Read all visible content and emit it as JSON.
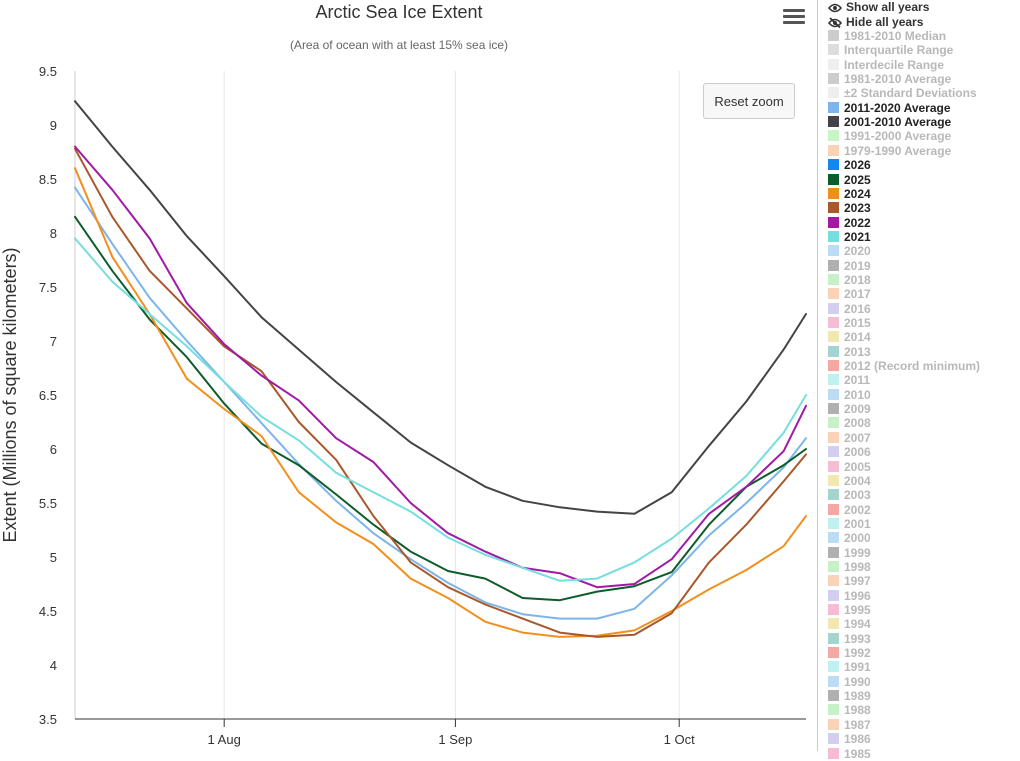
{
  "chart_data": {
    "type": "line",
    "title": "Arctic Sea Ice Extent",
    "subtitle": "(Area of ocean with at least 15% sea ice)",
    "ylabel": "Extent (Millions of square kilometers)",
    "xlabel": "",
    "ylim": [
      3.5,
      9.5
    ],
    "yticks": [
      "3.5",
      "4",
      "4.5",
      "5",
      "5.5",
      "6",
      "6.5",
      "7",
      "7.5",
      "8",
      "8.5",
      "9",
      "9.5"
    ],
    "x_ticks": [
      {
        "label": "1 Aug",
        "day": 213
      },
      {
        "label": "1 Sep",
        "day": 244
      },
      {
        "label": "1 Oct",
        "day": 274
      }
    ],
    "xlim_days": [
      193,
      291
    ],
    "grid": "vertical",
    "series": [
      {
        "name": "2001-2010 Average",
        "color": "#434348",
        "x": [
          193,
          198,
          203,
          208,
          213,
          218,
          223,
          228,
          233,
          238,
          243,
          248,
          253,
          258,
          263,
          268,
          273,
          278,
          283,
          288,
          291
        ],
        "values": [
          9.22,
          8.8,
          8.4,
          7.97,
          7.6,
          7.22,
          6.92,
          6.62,
          6.34,
          6.06,
          5.85,
          5.65,
          5.52,
          5.46,
          5.42,
          5.4,
          5.6,
          6.03,
          6.44,
          6.92,
          7.25
        ]
      },
      {
        "name": "2011-2020 Average",
        "color": "#7cb5ec",
        "x": [
          193,
          198,
          203,
          208,
          213,
          218,
          223,
          228,
          233,
          238,
          243,
          248,
          253,
          258,
          263,
          268,
          273,
          278,
          283,
          288,
          291
        ],
        "values": [
          8.42,
          7.9,
          7.4,
          7.0,
          6.62,
          6.24,
          5.86,
          5.52,
          5.22,
          4.98,
          4.76,
          4.58,
          4.47,
          4.43,
          4.43,
          4.52,
          4.83,
          5.2,
          5.5,
          5.83,
          6.1
        ]
      },
      {
        "name": "2025",
        "color": "#0d5c2b",
        "x": [
          193,
          198,
          203,
          208,
          213,
          218,
          223,
          228,
          233,
          238,
          243,
          248,
          253,
          258,
          263,
          268,
          273,
          278,
          283,
          288,
          291
        ],
        "values": [
          8.15,
          7.65,
          7.2,
          6.85,
          6.42,
          6.05,
          5.85,
          5.58,
          5.3,
          5.05,
          4.87,
          4.8,
          4.62,
          4.6,
          4.68,
          4.73,
          4.86,
          5.3,
          5.65,
          5.85,
          6.0
        ]
      },
      {
        "name": "2024",
        "color": "#f28f1c",
        "x": [
          193,
          198,
          203,
          208,
          213,
          218,
          223,
          228,
          233,
          238,
          243,
          248,
          253,
          258,
          263,
          268,
          273,
          278,
          283,
          288,
          291
        ],
        "values": [
          8.6,
          7.78,
          7.25,
          6.65,
          6.37,
          6.12,
          5.6,
          5.32,
          5.12,
          4.8,
          4.62,
          4.4,
          4.3,
          4.26,
          4.27,
          4.32,
          4.5,
          4.7,
          4.88,
          5.1,
          5.38
        ]
      },
      {
        "name": "2023",
        "color": "#a8582b",
        "x": [
          193,
          198,
          203,
          208,
          213,
          218,
          223,
          228,
          233,
          238,
          243,
          248,
          253,
          258,
          263,
          268,
          273,
          278,
          283,
          288,
          291
        ],
        "values": [
          8.78,
          8.15,
          7.65,
          7.3,
          6.95,
          6.72,
          6.25,
          5.9,
          5.38,
          4.95,
          4.72,
          4.56,
          4.43,
          4.3,
          4.26,
          4.28,
          4.48,
          4.95,
          5.3,
          5.7,
          5.95
        ]
      },
      {
        "name": "2022",
        "color": "#a01aa6",
        "x": [
          193,
          198,
          203,
          208,
          213,
          218,
          223,
          228,
          233,
          238,
          243,
          248,
          253,
          258,
          263,
          268,
          273,
          278,
          283,
          288,
          291
        ],
        "values": [
          8.8,
          8.4,
          7.95,
          7.35,
          6.97,
          6.68,
          6.45,
          6.1,
          5.88,
          5.5,
          5.22,
          5.05,
          4.9,
          4.85,
          4.72,
          4.75,
          4.98,
          5.4,
          5.65,
          5.98,
          6.4
        ]
      },
      {
        "name": "2021",
        "color": "#76dede",
        "x": [
          193,
          198,
          203,
          208,
          213,
          218,
          223,
          228,
          233,
          238,
          243,
          248,
          253,
          258,
          263,
          268,
          273,
          278,
          283,
          288,
          291
        ],
        "values": [
          7.95,
          7.55,
          7.25,
          6.95,
          6.62,
          6.3,
          6.08,
          5.78,
          5.6,
          5.42,
          5.18,
          5.02,
          4.9,
          4.78,
          4.8,
          4.95,
          5.17,
          5.45,
          5.75,
          6.15,
          6.5
        ]
      }
    ]
  },
  "toolbar": {
    "reset_zoom": "Reset zoom"
  },
  "legend": {
    "show_all": "Show all years",
    "hide_all": "Hide all years",
    "items": [
      {
        "label": "1981-2010 Median",
        "color": "#cccccc",
        "active": false
      },
      {
        "label": "Interquartile Range",
        "color": "#dddddd",
        "active": false
      },
      {
        "label": "Interdecile Range",
        "color": "#eeeeee",
        "active": false
      },
      {
        "label": "1981-2010 Average",
        "color": "#cccccc",
        "active": false
      },
      {
        "label": "±2 Standard Deviations",
        "color": "#eeeeee",
        "active": false
      },
      {
        "label": "2011-2020 Average",
        "color": "#7cb5ec",
        "active": true
      },
      {
        "label": "2001-2010 Average",
        "color": "#434348",
        "active": true
      },
      {
        "label": "1991-2000 Average",
        "color": "#c8f5c8",
        "active": false
      },
      {
        "label": "1979-1990 Average",
        "color": "#fad2b8",
        "active": false
      },
      {
        "label": "2026",
        "color": "#1188ee",
        "active": true
      },
      {
        "label": "2025",
        "color": "#0d5c2b",
        "active": true
      },
      {
        "label": "2024",
        "color": "#f28f1c",
        "active": true
      },
      {
        "label": "2023",
        "color": "#a8582b",
        "active": true
      },
      {
        "label": "2022",
        "color": "#a01aa6",
        "active": true
      },
      {
        "label": "2021",
        "color": "#76dede",
        "active": true
      },
      {
        "label": "2020",
        "color": "#bcdcf4",
        "active": false
      },
      {
        "label": "2019",
        "color": "#b0b0b0",
        "active": false
      },
      {
        "label": "2018",
        "color": "#c8f0c8",
        "active": false
      },
      {
        "label": "2017",
        "color": "#fad2b8",
        "active": false
      },
      {
        "label": "2016",
        "color": "#d2cef0",
        "active": false
      },
      {
        "label": "2015",
        "color": "#f6bcd6",
        "active": false
      },
      {
        "label": "2014",
        "color": "#f0e8b0",
        "active": false
      },
      {
        "label": "2013",
        "color": "#a4d4d0",
        "active": false
      },
      {
        "label": "2012 (Record minimum)",
        "color": "#f4a8a4",
        "active": false
      },
      {
        "label": "2011",
        "color": "#c0f0f0",
        "active": false
      },
      {
        "label": "2010",
        "color": "#bcdcf4",
        "active": false
      },
      {
        "label": "2009",
        "color": "#b0b0b0",
        "active": false
      },
      {
        "label": "2008",
        "color": "#c8f0c8",
        "active": false
      },
      {
        "label": "2007",
        "color": "#fad2b8",
        "active": false
      },
      {
        "label": "2006",
        "color": "#d2cef0",
        "active": false
      },
      {
        "label": "2005",
        "color": "#f6bcd6",
        "active": false
      },
      {
        "label": "2004",
        "color": "#f0e8b0",
        "active": false
      },
      {
        "label": "2003",
        "color": "#a4d4d0",
        "active": false
      },
      {
        "label": "2002",
        "color": "#f4a8a4",
        "active": false
      },
      {
        "label": "2001",
        "color": "#c0f0f0",
        "active": false
      },
      {
        "label": "2000",
        "color": "#bcdcf4",
        "active": false
      },
      {
        "label": "1999",
        "color": "#b0b0b0",
        "active": false
      },
      {
        "label": "1998",
        "color": "#c8f0c8",
        "active": false
      },
      {
        "label": "1997",
        "color": "#fad2b8",
        "active": false
      },
      {
        "label": "1996",
        "color": "#d2cef0",
        "active": false
      },
      {
        "label": "1995",
        "color": "#f6bcd6",
        "active": false
      },
      {
        "label": "1994",
        "color": "#f0e8b0",
        "active": false
      },
      {
        "label": "1993",
        "color": "#a4d4d0",
        "active": false
      },
      {
        "label": "1992",
        "color": "#f4a8a4",
        "active": false
      },
      {
        "label": "1991",
        "color": "#c0f0f0",
        "active": false
      },
      {
        "label": "1990",
        "color": "#bcdcf4",
        "active": false
      },
      {
        "label": "1989",
        "color": "#b0b0b0",
        "active": false
      },
      {
        "label": "1988",
        "color": "#c8f0c8",
        "active": false
      },
      {
        "label": "1987",
        "color": "#fad2b8",
        "active": false
      },
      {
        "label": "1986",
        "color": "#d2cef0",
        "active": false
      },
      {
        "label": "1985",
        "color": "#f6bcd6",
        "active": false
      }
    ]
  }
}
